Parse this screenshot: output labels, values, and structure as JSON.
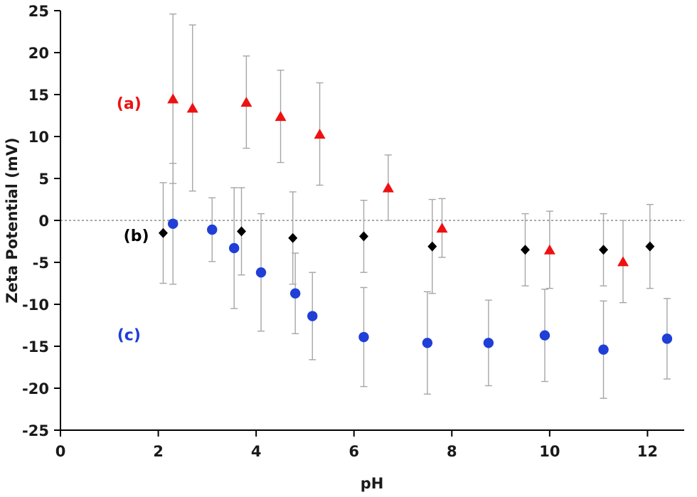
{
  "chart_data": {
    "type": "scatter",
    "title": "",
    "xlabel": "pH",
    "ylabel": "Zeta Potential (mV)",
    "xlim": [
      0,
      12.75
    ],
    "ylim": [
      -25,
      25
    ],
    "xticks": [
      0,
      2,
      4,
      6,
      8,
      10,
      12
    ],
    "yticks": [
      -25,
      -20,
      -15,
      -10,
      -5,
      0,
      5,
      10,
      15,
      20,
      25
    ],
    "grid": false,
    "legend_position": "none",
    "zero_line": {
      "y": 0,
      "style": "dashed",
      "color": "#555555"
    },
    "error_bar_color": "#a6a6a6",
    "series": [
      {
        "name": "(a)",
        "marker": "triangle",
        "color": "#ee1111",
        "points": [
          {
            "x": 2.3,
            "y": 14.5,
            "e": 10.1
          },
          {
            "x": 2.7,
            "y": 13.4,
            "e": 9.9
          },
          {
            "x": 3.8,
            "y": 14.1,
            "e": 5.5
          },
          {
            "x": 4.5,
            "y": 12.4,
            "e": 5.5
          },
          {
            "x": 5.3,
            "y": 10.3,
            "e": 6.1
          },
          {
            "x": 6.7,
            "y": 3.9,
            "e": 3.9
          },
          {
            "x": 7.8,
            "y": -0.9,
            "e": 3.5
          },
          {
            "x": 10.0,
            "y": -3.5,
            "e": 4.6
          },
          {
            "x": 11.5,
            "y": -4.9,
            "e": 4.9
          }
        ]
      },
      {
        "name": "(b)",
        "marker": "diamond",
        "color": "#000000",
        "points": [
          {
            "x": 2.1,
            "y": -1.5,
            "e": 6.0
          },
          {
            "x": 3.7,
            "y": -1.3,
            "e": 5.2
          },
          {
            "x": 4.75,
            "y": -2.1,
            "e": 5.5
          },
          {
            "x": 6.2,
            "y": -1.9,
            "e": 4.3
          },
          {
            "x": 7.6,
            "y": -3.1,
            "e": 5.6
          },
          {
            "x": 9.5,
            "y": -3.5,
            "e": 4.3
          },
          {
            "x": 11.1,
            "y": -3.5,
            "e": 4.3
          },
          {
            "x": 12.05,
            "y": -3.1,
            "e": 5.0
          }
        ]
      },
      {
        "name": "(c)",
        "marker": "circle",
        "color": "#1f3fd6",
        "points": [
          {
            "x": 2.3,
            "y": -0.4,
            "e": 7.2
          },
          {
            "x": 3.1,
            "y": -1.1,
            "e": 3.8
          },
          {
            "x": 3.55,
            "y": -3.3,
            "e": 7.2
          },
          {
            "x": 4.1,
            "y": -6.2,
            "e": 7.0
          },
          {
            "x": 4.8,
            "y": -8.7,
            "e": 4.8
          },
          {
            "x": 5.15,
            "y": -11.4,
            "e": 5.2
          },
          {
            "x": 6.2,
            "y": -13.9,
            "e": 5.9
          },
          {
            "x": 7.5,
            "y": -14.6,
            "e": 6.1
          },
          {
            "x": 8.75,
            "y": -14.6,
            "e": 5.1
          },
          {
            "x": 9.9,
            "y": -13.7,
            "e": 5.5
          },
          {
            "x": 11.1,
            "y": -15.4,
            "e": 5.8
          },
          {
            "x": 12.4,
            "y": -14.1,
            "e": 4.8
          }
        ]
      }
    ],
    "annotations": [
      {
        "text": "(a)",
        "x": 1.4,
        "y": 14.0,
        "color": "#ee1111"
      },
      {
        "text": "(b)",
        "x": 1.55,
        "y": -1.8,
        "color": "#000000"
      },
      {
        "text": "(c)",
        "x": 1.4,
        "y": -13.6,
        "color": "#1f3fd6"
      }
    ]
  }
}
